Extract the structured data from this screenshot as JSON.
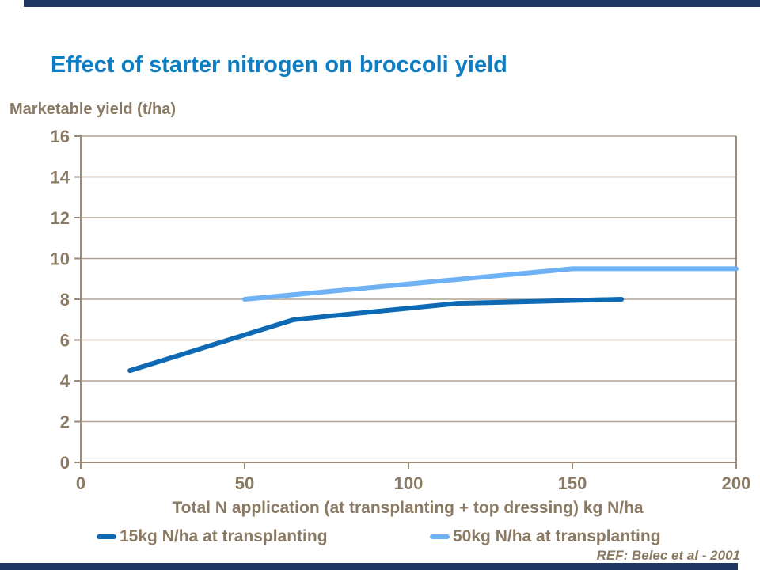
{
  "slide": {
    "citation": "REF: Belec et al - 2001",
    "colors": {
      "title_blue": "#0D7EC3",
      "rule_bar_navy": "#1F3864",
      "text_brown": "#8A7963"
    }
  },
  "chart_data": {
    "type": "line",
    "title": "Effect of starter nitrogen on broccoli yield",
    "ylabel": "Marketable yield (t/ha)",
    "xlabel": "Total N application (at transplanting + top dressing) kg N/ha",
    "xlim": [
      0,
      200
    ],
    "ylim": [
      0,
      16
    ],
    "x_ticks": [
      0,
      50,
      100,
      150,
      200
    ],
    "y_ticks": [
      0,
      2,
      4,
      6,
      8,
      10,
      12,
      14,
      16
    ],
    "grid": "horizontal",
    "legend_position": "bottom",
    "colors": {
      "grid": "#B0A394",
      "axis": "#9A8C78",
      "tick_text": "#8A7963"
    },
    "series": [
      {
        "name": "15kg N/ha at transplanting",
        "color": "#0D69B4",
        "points": [
          [
            15,
            4.5
          ],
          [
            65,
            7.0
          ],
          [
            115,
            7.8
          ],
          [
            165,
            8.0
          ]
        ]
      },
      {
        "name": "50kg N/ha at transplanting",
        "color": "#6EB1F5",
        "points": [
          [
            50,
            8.0
          ],
          [
            150,
            9.5
          ],
          [
            200,
            9.5
          ]
        ]
      }
    ]
  }
}
